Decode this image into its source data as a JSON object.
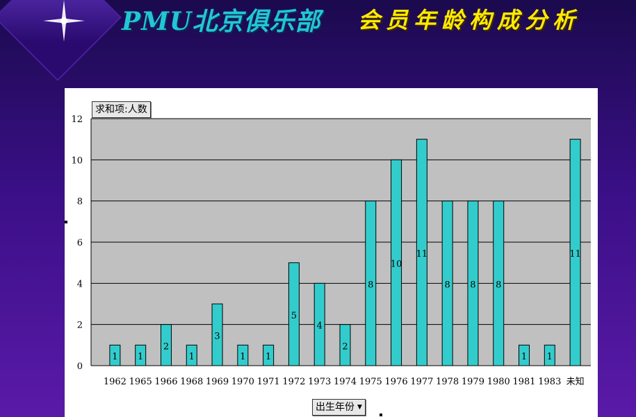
{
  "header": {
    "title_left": "PMU北京俱乐部",
    "title_right": "会员年龄构成分析"
  },
  "chart_data": {
    "type": "bar",
    "title": "",
    "field_label": "求和项:人数",
    "xlabel": "出生年份",
    "ylabel": "",
    "ylim": [
      0,
      12
    ],
    "yticks": [
      0,
      2,
      4,
      6,
      8,
      10,
      12
    ],
    "grid": true,
    "categories": [
      "1962",
      "1965",
      "1966",
      "1968",
      "1969",
      "1970",
      "1971",
      "1972",
      "1973",
      "1974",
      "1975",
      "1976",
      "1977",
      "1978",
      "1979",
      "1980",
      "1981",
      "1983",
      "未知"
    ],
    "values": [
      1,
      1,
      2,
      1,
      3,
      1,
      1,
      5,
      4,
      2,
      8,
      10,
      11,
      8,
      8,
      8,
      1,
      1,
      11
    ],
    "colors": {
      "bar": "#33cccc",
      "plot_bg": "#c0c0c0",
      "panel_bg": "#ffffff"
    }
  }
}
